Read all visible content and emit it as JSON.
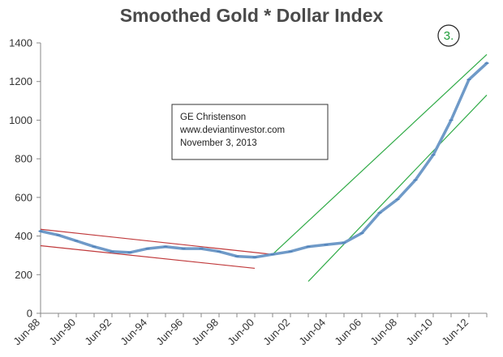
{
  "chart_data": {
    "type": "line",
    "title": "Smoothed Gold * Dollar Index",
    "badge": "3.",
    "annotation": [
      "GE Christenson",
      "www.deviantinvestor.com",
      "November 3, 2013"
    ],
    "ylim": [
      0,
      1400
    ],
    "y_ticks": [
      "0",
      "200",
      "400",
      "600",
      "800",
      "1000",
      "1200",
      "1400"
    ],
    "x_tick_labels": [
      "Jun-88",
      "Jun-90",
      "Jun-92",
      "Jun-94",
      "Jun-96",
      "Jun-98",
      "Jun-00",
      "Jun-02",
      "Jun-04",
      "Jun-06",
      "Jun-08",
      "Jun-10",
      "Jun-12"
    ],
    "grid": false,
    "series": [
      {
        "color": "#6f9ac8",
        "x": [
          "Jun-88",
          "Jun-89",
          "Jun-90",
          "Jun-91",
          "Jun-92",
          "Jun-93",
          "Jun-94",
          "Jun-95",
          "Jun-96",
          "Jun-97",
          "Jun-98",
          "Jun-99",
          "Jun-00",
          "Jun-01",
          "Jun-02",
          "Jun-03",
          "Jun-04",
          "Jun-05",
          "Jun-06",
          "Jun-07",
          "Jun-08",
          "Jun-09",
          "Jun-10",
          "Jun-11",
          "Jun-12",
          "Jun-13"
        ],
        "values": [
          425,
          405,
          375,
          345,
          320,
          315,
          335,
          345,
          335,
          335,
          320,
          295,
          290,
          305,
          320,
          345,
          355,
          365,
          415,
          520,
          590,
          690,
          820,
          1000,
          1210,
          1295
        ]
      }
    ],
    "trend_lines": [
      {
        "color": "#c0393b",
        "from": [
          "Jun-88",
          435
        ],
        "to": [
          "Jun-01",
          305
        ]
      },
      {
        "color": "#c0393b",
        "from": [
          "Jun-88",
          350
        ],
        "to": [
          "Jun-00",
          233
        ]
      },
      {
        "color": "#2eaa45",
        "from": [
          "Jun-01",
          305
        ],
        "to": [
          "Jun-13",
          1340
        ]
      },
      {
        "color": "#2eaa45",
        "from": [
          "Jun-03",
          165
        ],
        "to": [
          "Jun-13",
          1130
        ]
      }
    ]
  }
}
